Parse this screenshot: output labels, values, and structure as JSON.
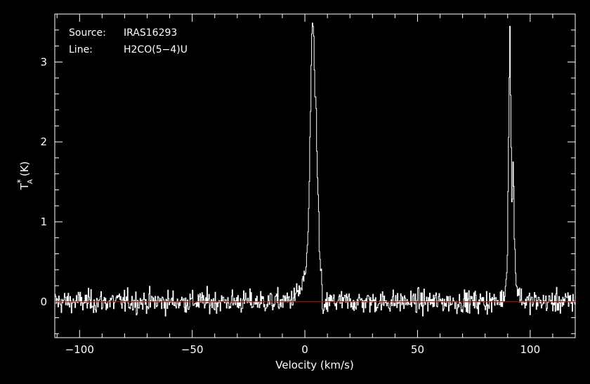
{
  "chart_data": {
    "type": "line",
    "xlabel": "Velocity (km/s)",
    "ylabel": "T",
    "ylabel_sup": "*",
    "ylabel_sub": "A",
    "ylabel_unit": "(K)",
    "xlim": [
      -111,
      120
    ],
    "ylim": [
      -0.45,
      3.6
    ],
    "xticks": [
      -100,
      -50,
      0,
      50,
      100
    ],
    "yticks": [
      0,
      1,
      2,
      3
    ],
    "xtick_labels": [
      "−100",
      "−50",
      "0",
      "50",
      "100"
    ],
    "ytick_labels": [
      "0",
      "1",
      "2",
      "3"
    ],
    "annotations": [
      {
        "key": "Source:",
        "value": "IRAS16293"
      },
      {
        "key": "Line:",
        "value": "H2CO(5−4)U"
      }
    ],
    "baseline": 0,
    "colors": {
      "background": "#000000",
      "axes": "#ffffff",
      "spectrum": "#ffffff",
      "baseline": "#cc0000"
    },
    "series": [
      {
        "noise_rms": 0.07,
        "x": [
          -111,
          -10,
          -5,
          -2,
          0,
          1,
          1.5,
          2,
          2.5,
          3,
          3.5,
          4,
          4.5,
          5,
          5.5,
          6,
          6.5,
          7,
          7.5,
          8,
          10,
          12,
          14,
          86,
          88,
          89,
          89.5,
          90,
          90.5,
          91,
          91.5,
          92,
          92.5,
          93,
          93.5,
          94,
          95,
          97,
          120
        ],
        "y": [
          0,
          0,
          0.05,
          0.15,
          0.3,
          0.6,
          0.9,
          1.5,
          2.4,
          3.1,
          3.52,
          3.2,
          2.6,
          2.45,
          1.8,
          1.2,
          0.6,
          0.4,
          0.3,
          -0.2,
          0,
          0,
          0,
          0,
          0.05,
          0.15,
          0.35,
          0.8,
          2.3,
          3.45,
          2.0,
          1.1,
          1.78,
          0.9,
          0.4,
          0.2,
          0.1,
          0,
          0
        ]
      }
    ]
  }
}
